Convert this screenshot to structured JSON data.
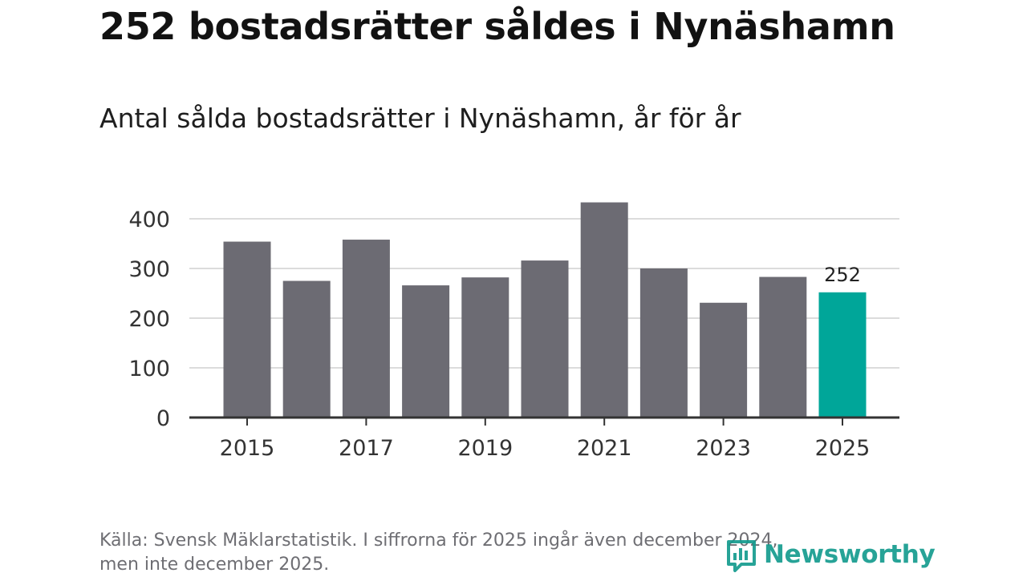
{
  "header": {
    "title": "252 bostadsrätter såldes i Nynäshamn",
    "subtitle": "Antal sålda bostadsrätter i Nynäshamn, år för år"
  },
  "footer": {
    "source_line1": "Källa: Svensk Mäklarstatistik. I siffrorna för 2025 ingår även december 2024,",
    "source_line2": "men inte december 2025."
  },
  "logo": {
    "text": "Newsworthy",
    "icon": "newsworthy-logo-icon",
    "color": "#159c8f"
  },
  "chart_data": {
    "type": "bar",
    "categories": [
      "2015",
      "2016",
      "2017",
      "2018",
      "2019",
      "2020",
      "2021",
      "2022",
      "2023",
      "2024",
      "2025"
    ],
    "values": [
      354,
      275,
      358,
      266,
      282,
      316,
      433,
      300,
      231,
      283,
      252
    ],
    "x_tick_labels": [
      "2015",
      "2017",
      "2019",
      "2021",
      "2023",
      "2025"
    ],
    "y_ticks": [
      0,
      100,
      200,
      300,
      400
    ],
    "ylim": [
      0,
      450
    ],
    "grid": true,
    "highlight": {
      "category": "2025",
      "label": "252"
    },
    "colors": {
      "bar": "#6c6b73",
      "highlight": "#00a699",
      "grid": "#dcdcdc",
      "axis": "#333333",
      "tick_text": "#333333"
    }
  }
}
